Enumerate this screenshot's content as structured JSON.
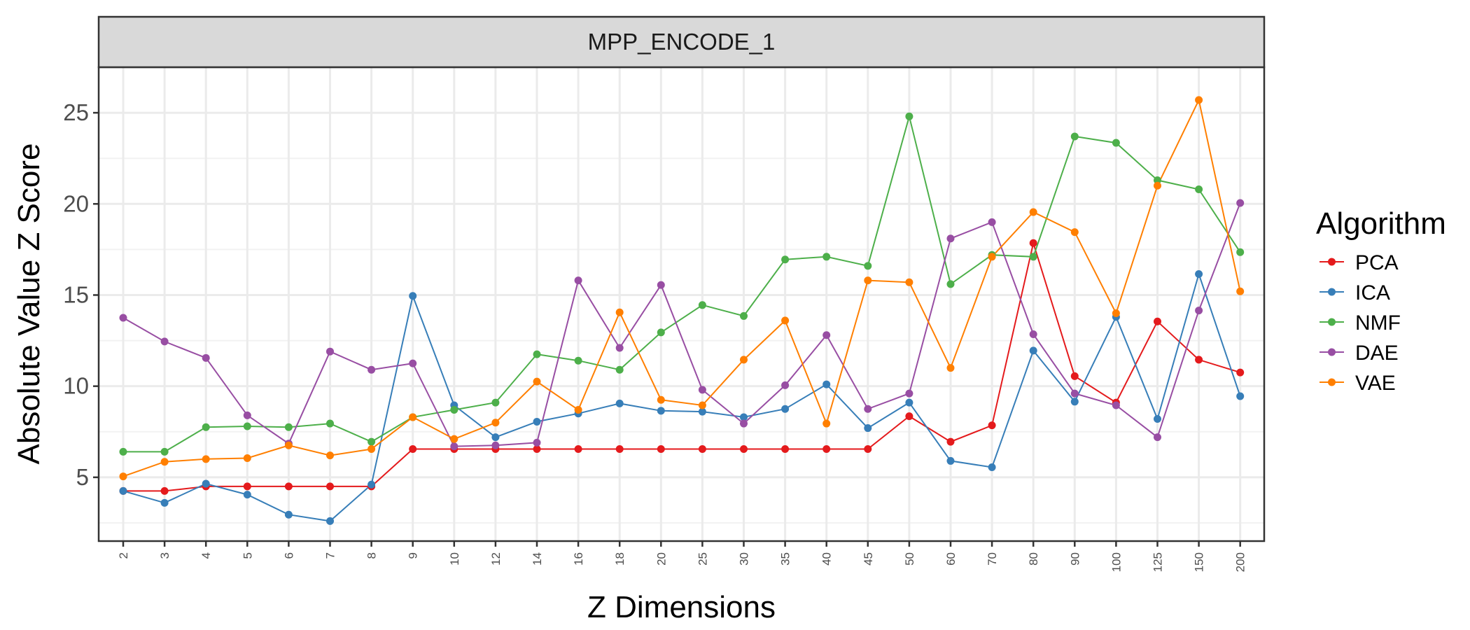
{
  "chart_data": {
    "type": "line",
    "facet_title": "MPP_ENCODE_1",
    "xlabel": "Z Dimensions",
    "ylabel": "Absolute Value Z Score",
    "categories": [
      "2",
      "3",
      "4",
      "5",
      "6",
      "7",
      "8",
      "9",
      "10",
      "12",
      "14",
      "16",
      "18",
      "20",
      "25",
      "30",
      "35",
      "40",
      "45",
      "50",
      "60",
      "70",
      "80",
      "90",
      "100",
      "125",
      "150",
      "200"
    ],
    "yticks": [
      5,
      10,
      15,
      20,
      25
    ],
    "ylim": [
      1.5,
      27.5
    ],
    "grid": true,
    "legend": {
      "title": "Algorithm",
      "position": "right"
    },
    "series": [
      {
        "name": "PCA",
        "color": "#e41a1c",
        "values": [
          4.25,
          4.25,
          4.5,
          4.5,
          4.5,
          4.5,
          4.5,
          6.55,
          6.55,
          6.55,
          6.55,
          6.55,
          6.55,
          6.55,
          6.55,
          6.55,
          6.55,
          6.55,
          6.55,
          8.35,
          6.95,
          7.85,
          17.85,
          10.55,
          9.1,
          13.55,
          11.45,
          10.75
        ]
      },
      {
        "name": "ICA",
        "color": "#377eb8",
        "values": [
          4.25,
          3.6,
          4.65,
          4.05,
          2.95,
          2.6,
          4.6,
          14.95,
          8.95,
          7.2,
          8.05,
          8.5,
          9.05,
          8.65,
          8.6,
          8.3,
          8.75,
          10.1,
          7.7,
          9.1,
          5.9,
          5.55,
          11.95,
          9.15,
          13.8,
          8.2,
          16.15,
          9.45
        ]
      },
      {
        "name": "NMF",
        "color": "#4daf4a",
        "values": [
          6.4,
          6.4,
          7.75,
          7.8,
          7.75,
          7.95,
          6.95,
          8.3,
          8.7,
          9.1,
          11.75,
          11.4,
          10.9,
          12.95,
          14.45,
          13.85,
          16.95,
          17.1,
          16.6,
          24.8,
          15.6,
          17.2,
          17.1,
          23.7,
          23.35,
          21.3,
          20.8,
          17.35
        ]
      },
      {
        "name": "DAE",
        "color": "#984ea3",
        "values": [
          13.75,
          12.45,
          11.55,
          8.4,
          6.85,
          11.9,
          10.9,
          11.25,
          6.7,
          6.75,
          6.9,
          15.8,
          12.1,
          15.55,
          9.8,
          7.95,
          10.05,
          12.8,
          8.75,
          9.6,
          18.1,
          19.0,
          12.85,
          9.6,
          8.95,
          7.2,
          14.15,
          20.05
        ]
      },
      {
        "name": "VAE",
        "color": "#ff7f00",
        "values": [
          5.05,
          5.85,
          6.0,
          6.05,
          6.75,
          6.2,
          6.55,
          8.3,
          7.1,
          8.0,
          10.25,
          8.7,
          14.05,
          9.25,
          8.95,
          11.45,
          13.6,
          7.95,
          15.8,
          15.7,
          11.0,
          17.1,
          19.55,
          18.45,
          14.0,
          21.0,
          25.7,
          15.2
        ]
      }
    ]
  }
}
